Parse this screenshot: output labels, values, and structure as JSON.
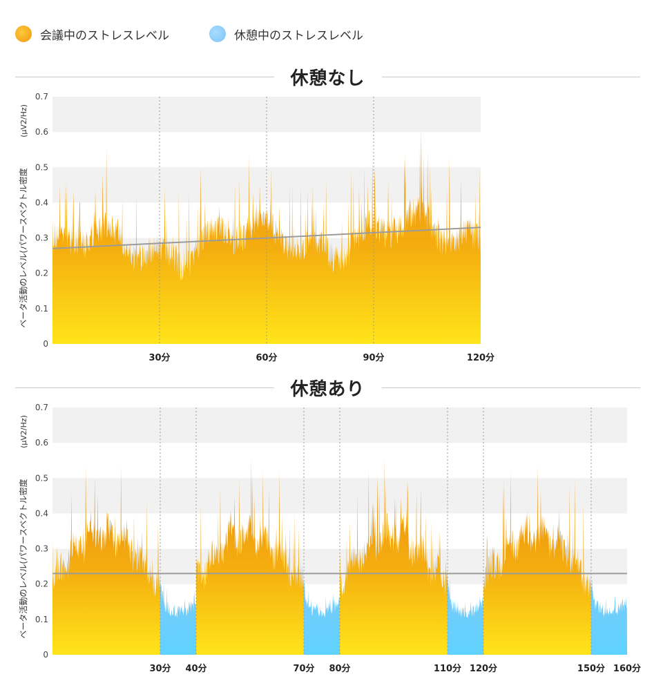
{
  "legend": [
    {
      "label": "会議中のストレスレベル",
      "color": "#f5a91e"
    },
    {
      "label": "休憩中のストレスレベル",
      "color": "#8ccdf8"
    }
  ],
  "colors": {
    "meeting_top": "#e8890e",
    "meeting_bottom": "#ffe41a",
    "break_top": "#7cc8f7",
    "break_bottom": "#5fd3ff",
    "band": "#f1f1f1",
    "trend": "#9b9b9b",
    "divider": "#999999"
  },
  "chart_data": [
    {
      "type": "area",
      "title": "休憩なし",
      "ylabel": "ベータ活動のレベル(パワースペクトル密度",
      "yunit": "(µV2/Hz)",
      "ylim": [
        0,
        0.7
      ],
      "yticks": [
        "0",
        "0.1",
        "0.2",
        "0.3",
        "0.4",
        "0.5",
        "0.6",
        "0.7"
      ],
      "xlim": [
        0,
        120
      ],
      "xticks": [
        {
          "x": 30,
          "label": "30分"
        },
        {
          "x": 60,
          "label": "60分"
        },
        {
          "x": 90,
          "label": "90分"
        },
        {
          "x": 120,
          "label": "120分"
        }
      ],
      "dividers": [
        30,
        60,
        90
      ],
      "segments": [
        {
          "kind": "meeting",
          "start": 0,
          "end": 120
        }
      ],
      "trend": [
        [
          0,
          0.27
        ],
        [
          120,
          0.33
        ]
      ]
    },
    {
      "type": "area",
      "title": "休憩あり",
      "ylabel": "ベータ活動のレベル(パワースペクトル密度",
      "yunit": "(µV2/Hz)",
      "ylim": [
        0,
        0.7
      ],
      "yticks": [
        "0",
        "0.1",
        "0.2",
        "0.3",
        "0.4",
        "0.5",
        "0.6",
        "0.7"
      ],
      "xlim": [
        0,
        160
      ],
      "xticks": [
        {
          "x": 30,
          "label": "30分"
        },
        {
          "x": 40,
          "label": "40分"
        },
        {
          "x": 70,
          "label": "70分"
        },
        {
          "x": 80,
          "label": "80分"
        },
        {
          "x": 110,
          "label": "110分"
        },
        {
          "x": 120,
          "label": "120分"
        },
        {
          "x": 150,
          "label": "150分"
        },
        {
          "x": 160,
          "label": "160分"
        }
      ],
      "dividers": [
        30,
        40,
        70,
        80,
        110,
        120,
        150
      ],
      "segments": [
        {
          "kind": "meeting",
          "start": 0,
          "end": 30
        },
        {
          "kind": "break",
          "start": 30,
          "end": 40
        },
        {
          "kind": "meeting",
          "start": 40,
          "end": 70
        },
        {
          "kind": "break",
          "start": 70,
          "end": 80
        },
        {
          "kind": "meeting",
          "start": 80,
          "end": 110
        },
        {
          "kind": "break",
          "start": 110,
          "end": 120
        },
        {
          "kind": "meeting",
          "start": 120,
          "end": 150
        },
        {
          "kind": "break",
          "start": 150,
          "end": 160
        }
      ],
      "trend": [
        [
          0,
          0.23
        ],
        [
          160,
          0.23
        ]
      ]
    }
  ]
}
